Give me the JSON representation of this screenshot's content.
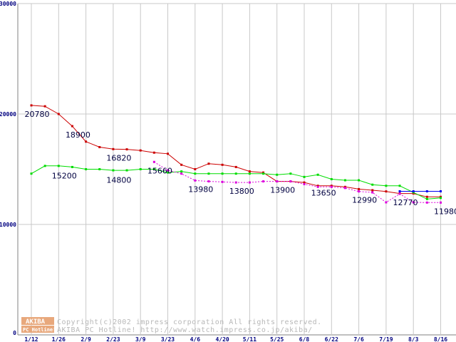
{
  "chart_data": {
    "type": "line",
    "title": "",
    "xlabel": "",
    "ylabel": "",
    "ylim": [
      0,
      30000
    ],
    "y_ticks": [
      "30000",
      "20000",
      "10000",
      "0"
    ],
    "grid": true,
    "x_ticks": [
      "1/12",
      "1/26",
      "2/9",
      "2/23",
      "3/9",
      "3/23",
      "4/6",
      "4/20",
      "5/11",
      "5/25",
      "6/8",
      "6/22",
      "7/6",
      "7/19",
      "8/3",
      "8/16"
    ],
    "series": [
      {
        "color": "#cc0000",
        "style": "solid",
        "values": [
          [
            0,
            20780
          ],
          [
            0.5,
            20700
          ],
          [
            1,
            20000
          ],
          [
            1.5,
            18900
          ],
          [
            2,
            17500
          ],
          [
            2.5,
            17000
          ],
          [
            3,
            16820
          ],
          [
            3.5,
            16800
          ],
          [
            4,
            16700
          ],
          [
            4.5,
            16500
          ],
          [
            5,
            16400
          ],
          [
            5.5,
            15400
          ],
          [
            6,
            15000
          ],
          [
            6.5,
            15500
          ],
          [
            7,
            15400
          ],
          [
            7.5,
            15200
          ],
          [
            8,
            14800
          ],
          [
            8.5,
            14700
          ],
          [
            9,
            13900
          ],
          [
            9.5,
            13900
          ],
          [
            10,
            13800
          ],
          [
            10.5,
            13500
          ],
          [
            11,
            13500
          ],
          [
            11.5,
            13400
          ],
          [
            12,
            13200
          ],
          [
            12.5,
            13100
          ],
          [
            13,
            12990
          ],
          [
            13.5,
            12800
          ],
          [
            14,
            12800
          ],
          [
            14.5,
            12500
          ],
          [
            15,
            12500
          ]
        ]
      },
      {
        "color": "#00dd00",
        "style": "solid",
        "values": [
          [
            0,
            14600
          ],
          [
            0.5,
            15300
          ],
          [
            1,
            15300
          ],
          [
            1.5,
            15200
          ],
          [
            2,
            15000
          ],
          [
            2.5,
            15000
          ],
          [
            3,
            14900
          ],
          [
            3.5,
            14900
          ],
          [
            4,
            15000
          ],
          [
            4.5,
            15000
          ],
          [
            5,
            14700
          ],
          [
            5.5,
            14800
          ],
          [
            6,
            14600
          ],
          [
            6.5,
            14600
          ],
          [
            7,
            14600
          ],
          [
            7.5,
            14600
          ],
          [
            8,
            14600
          ],
          [
            8.5,
            14600
          ],
          [
            9,
            14500
          ],
          [
            9.5,
            14600
          ],
          [
            10,
            14300
          ],
          [
            10.5,
            14500
          ],
          [
            11,
            14100
          ],
          [
            11.5,
            14000
          ],
          [
            12,
            14000
          ],
          [
            12.5,
            13600
          ],
          [
            13,
            13500
          ],
          [
            13.5,
            13500
          ],
          [
            14,
            12900
          ],
          [
            14.5,
            12300
          ],
          [
            15,
            12400
          ]
        ]
      },
      {
        "color": "#dd00dd",
        "style": "dashed",
        "values": [
          [
            4.5,
            15660
          ],
          [
            5,
            14900
          ],
          [
            5.5,
            14600
          ],
          [
            6,
            13980
          ],
          [
            6.5,
            13900
          ],
          [
            7,
            13850
          ],
          [
            7.5,
            13800
          ],
          [
            8,
            13800
          ],
          [
            8.5,
            13900
          ],
          [
            9,
            13900
          ],
          [
            9.5,
            13900
          ],
          [
            10,
            13650
          ],
          [
            10.5,
            13400
          ],
          [
            11,
            13400
          ],
          [
            11.5,
            13300
          ],
          [
            12,
            12990
          ],
          [
            12.5,
            12900
          ],
          [
            13,
            12000
          ],
          [
            13.5,
            12770
          ],
          [
            14,
            12000
          ],
          [
            14.5,
            11980
          ],
          [
            15,
            11980
          ]
        ]
      },
      {
        "color": "#0000ee",
        "style": "solid",
        "values": [
          [
            13.5,
            13000
          ],
          [
            14,
            13000
          ],
          [
            14.5,
            13000
          ],
          [
            15,
            13000
          ]
        ]
      }
    ],
    "annotations": [
      {
        "text": "20780",
        "x": 0,
        "y": 20780
      },
      {
        "text": "18900",
        "x": 1.5,
        "y": 18900
      },
      {
        "text": "16820",
        "x": 3,
        "y": 16820
      },
      {
        "text": "15660",
        "x": 4.5,
        "y": 15660
      },
      {
        "text": "15200",
        "x": 1,
        "y": 15200
      },
      {
        "text": "14800",
        "x": 3,
        "y": 14800
      },
      {
        "text": "13980",
        "x": 6,
        "y": 13980
      },
      {
        "text": "13800",
        "x": 7.5,
        "y": 13800
      },
      {
        "text": "13900",
        "x": 9,
        "y": 13900
      },
      {
        "text": "13650",
        "x": 10.5,
        "y": 13650
      },
      {
        "text": "12990",
        "x": 12,
        "y": 12990
      },
      {
        "text": "12770",
        "x": 13.5,
        "y": 12770
      },
      {
        "text": "11980",
        "x": 15,
        "y": 11980
      }
    ]
  },
  "logo": {
    "line1": "AKIBA",
    "line2": "PC Hotline!"
  },
  "copyright": {
    "line1": "Copyright(c)2002 impress corporation All rights reserved.",
    "line2": "AKIBA PC Hotline!  http://www.watch.impress.co.jp/akiba/"
  }
}
